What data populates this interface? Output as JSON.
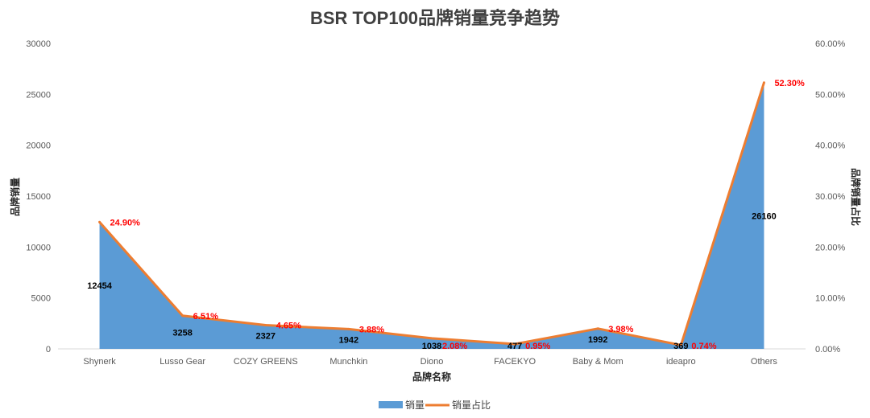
{
  "chart_data": {
    "type": "area",
    "title": "BSR TOP100品牌销量竞争趋势",
    "xlabel": "品牌名称",
    "ylabel": "品牌销量",
    "y2label": "品牌销量占比",
    "categories": [
      "Shynerk",
      "Lusso Gear",
      "COZY GREENS",
      "Munchkin",
      "Diono",
      "FACEKYO",
      "Baby & Mom",
      "ideapro",
      "Others"
    ],
    "series": [
      {
        "name": "销量",
        "type": "area",
        "axis": "left",
        "values": [
          12454,
          3258,
          2327,
          1942,
          1038,
          477,
          1992,
          369,
          26160
        ],
        "labels": [
          "12454",
          "3258",
          "2327",
          "1942",
          "1038",
          "477",
          "1992",
          "369",
          "26160"
        ]
      },
      {
        "name": "销量占比",
        "type": "line",
        "axis": "right",
        "values": [
          24.9,
          6.51,
          4.65,
          3.88,
          2.08,
          0.95,
          3.98,
          0.74,
          52.3
        ],
        "labels": [
          "24.90%",
          "6.51%",
          "4.65%",
          "3.88%",
          "2.08%",
          "0.95%",
          "3.98%",
          "0.74%",
          "52.30%"
        ]
      }
    ],
    "ylim": [
      0,
      30000
    ],
    "yticks": [
      "0",
      "5000",
      "10000",
      "15000",
      "20000",
      "25000",
      "30000"
    ],
    "y2lim": [
      0,
      60
    ],
    "y2ticks": [
      "0.00%",
      "10.00%",
      "20.00%",
      "30.00%",
      "40.00%",
      "50.00%",
      "60.00%"
    ],
    "grid": false,
    "legend": "bottom",
    "colors": {
      "area": "#5b9bd5",
      "line": "#ed7d31",
      "pct_label": "#ff0000",
      "value_label": "#000000"
    }
  }
}
